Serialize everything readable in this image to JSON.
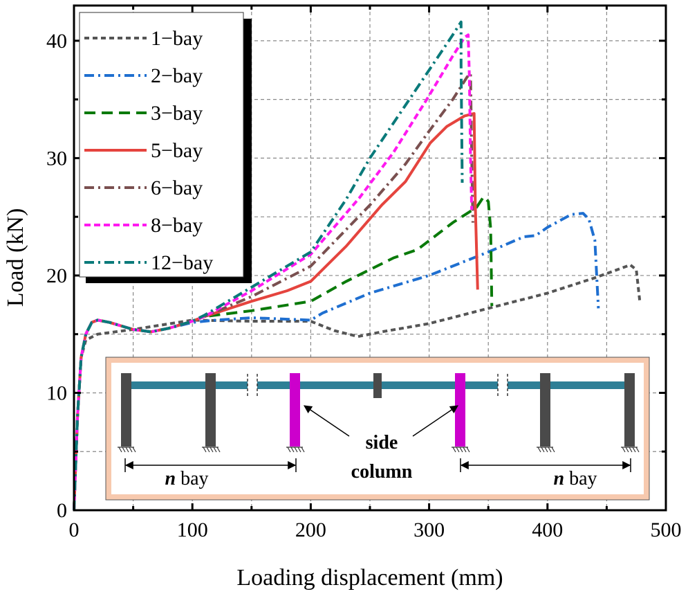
{
  "chart_data": {
    "type": "line",
    "xlabel": "Loading displacement (mm)",
    "ylabel": "Load (kN)",
    "xlim": [
      0,
      500
    ],
    "ylim": [
      0,
      43
    ],
    "xticks": [
      0,
      100,
      200,
      300,
      400,
      500
    ],
    "yticks": [
      0,
      10,
      20,
      30,
      40
    ],
    "grid": true,
    "legend_placement": "top-left",
    "series": [
      {
        "name": "1−bay",
        "color": "#555555",
        "dash": "7,5",
        "points": [
          [
            0,
            0
          ],
          [
            3,
            8
          ],
          [
            6,
            13
          ],
          [
            10,
            14.5
          ],
          [
            20,
            15
          ],
          [
            50,
            15.4
          ],
          [
            100,
            16.2
          ],
          [
            150,
            16.1
          ],
          [
            200,
            16.1
          ],
          [
            220,
            15.3
          ],
          [
            240,
            14.8
          ],
          [
            260,
            15.2
          ],
          [
            300,
            15.9
          ],
          [
            350,
            17.2
          ],
          [
            400,
            18.5
          ],
          [
            440,
            19.8
          ],
          [
            470,
            20.9
          ],
          [
            475,
            20.5
          ],
          [
            478,
            17.8
          ]
        ]
      },
      {
        "name": "2−bay",
        "color": "#1f6fd0",
        "dash": "14,6,3,6",
        "points": [
          [
            0,
            0
          ],
          [
            3,
            8
          ],
          [
            6,
            13
          ],
          [
            10,
            15
          ],
          [
            15,
            16
          ],
          [
            20,
            16.2
          ],
          [
            30,
            16
          ],
          [
            50,
            15.4
          ],
          [
            65,
            15.2
          ],
          [
            80,
            15.5
          ],
          [
            100,
            16
          ],
          [
            120,
            16.2
          ],
          [
            150,
            16.4
          ],
          [
            200,
            16.2
          ],
          [
            210,
            16.8
          ],
          [
            250,
            18.5
          ],
          [
            300,
            20
          ],
          [
            350,
            22
          ],
          [
            380,
            23.3
          ],
          [
            390,
            23.4
          ],
          [
            400,
            24.1
          ],
          [
            420,
            25.2
          ],
          [
            430,
            25.3
          ],
          [
            435,
            24.8
          ],
          [
            440,
            23
          ],
          [
            443,
            17.2
          ]
        ]
      },
      {
        "name": "3−bay",
        "color": "#0a7a0a",
        "dash": "16,9",
        "points": [
          [
            0,
            0
          ],
          [
            3,
            8
          ],
          [
            6,
            13
          ],
          [
            10,
            15
          ],
          [
            15,
            16
          ],
          [
            20,
            16.2
          ],
          [
            30,
            16
          ],
          [
            50,
            15.4
          ],
          [
            65,
            15.2
          ],
          [
            80,
            15.5
          ],
          [
            100,
            16.1
          ],
          [
            110,
            16.5
          ],
          [
            150,
            17
          ],
          [
            200,
            17.8
          ],
          [
            230,
            19.5
          ],
          [
            270,
            21.5
          ],
          [
            290,
            22.2
          ],
          [
            320,
            24.5
          ],
          [
            340,
            25.8
          ],
          [
            346,
            26.7
          ],
          [
            350,
            26.3
          ],
          [
            352,
            24
          ],
          [
            353,
            17.4
          ]
        ]
      },
      {
        "name": "5−bay",
        "color": "#e5443e",
        "dash": "",
        "points": [
          [
            0,
            0
          ],
          [
            3,
            8
          ],
          [
            6,
            13
          ],
          [
            10,
            15
          ],
          [
            15,
            16
          ],
          [
            20,
            16.2
          ],
          [
            30,
            16
          ],
          [
            50,
            15.4
          ],
          [
            65,
            15.2
          ],
          [
            80,
            15.5
          ],
          [
            100,
            16.1
          ],
          [
            110,
            16.5
          ],
          [
            150,
            17.8
          ],
          [
            180,
            18.7
          ],
          [
            200,
            19.5
          ],
          [
            230,
            22.5
          ],
          [
            260,
            26
          ],
          [
            280,
            28
          ],
          [
            301,
            31.3
          ],
          [
            315,
            32.7
          ],
          [
            330,
            33.6
          ],
          [
            338,
            33.8
          ],
          [
            339,
            26
          ],
          [
            341,
            18.8
          ]
        ]
      },
      {
        "name": "6−bay",
        "color": "#7a5050",
        "dash": "14,6,3,6",
        "points": [
          [
            0,
            0
          ],
          [
            3,
            8
          ],
          [
            6,
            13
          ],
          [
            10,
            15
          ],
          [
            15,
            16
          ],
          [
            20,
            16.2
          ],
          [
            30,
            16
          ],
          [
            50,
            15.4
          ],
          [
            65,
            15.2
          ],
          [
            80,
            15.5
          ],
          [
            100,
            16.1
          ],
          [
            110,
            16.5
          ],
          [
            150,
            18.2
          ],
          [
            200,
            20.8
          ],
          [
            250,
            26
          ],
          [
            280,
            29.5
          ],
          [
            300,
            32.3
          ],
          [
            320,
            35
          ],
          [
            332,
            36.9
          ],
          [
            335,
            37.2
          ],
          [
            336,
            30
          ],
          [
            337,
            24.5
          ]
        ]
      },
      {
        "name": "8−bay",
        "color": "#ff19f0",
        "dash": "9,5",
        "points": [
          [
            0,
            0
          ],
          [
            3,
            8
          ],
          [
            6,
            13
          ],
          [
            10,
            15
          ],
          [
            15,
            16
          ],
          [
            20,
            16.2
          ],
          [
            30,
            16
          ],
          [
            50,
            15.4
          ],
          [
            65,
            15.2
          ],
          [
            80,
            15.5
          ],
          [
            100,
            16.1
          ],
          [
            110,
            16.5
          ],
          [
            150,
            18.7
          ],
          [
            200,
            21.8
          ],
          [
            241,
            26.6
          ],
          [
            270,
            30.5
          ],
          [
            298,
            35
          ],
          [
            320,
            38.7
          ],
          [
            330,
            40.3
          ],
          [
            333,
            40.5
          ],
          [
            334,
            37
          ],
          [
            335,
            30
          ],
          [
            336,
            25.6
          ]
        ]
      },
      {
        "name": "12−bay",
        "color": "#0a7a7a",
        "dash": "14,6,3,6",
        "points": [
          [
            0,
            0
          ],
          [
            3,
            8
          ],
          [
            6,
            13
          ],
          [
            10,
            15
          ],
          [
            15,
            16
          ],
          [
            20,
            16.2
          ],
          [
            30,
            16
          ],
          [
            50,
            15.4
          ],
          [
            65,
            15.2
          ],
          [
            80,
            15.5
          ],
          [
            100,
            16.1
          ],
          [
            110,
            16.6
          ],
          [
            150,
            19
          ],
          [
            200,
            22
          ],
          [
            230,
            26.5
          ],
          [
            250,
            30
          ],
          [
            270,
            33
          ],
          [
            300,
            37.5
          ],
          [
            320,
            40.5
          ],
          [
            327,
            41.6
          ],
          [
            327,
            38
          ],
          [
            328,
            27.9
          ]
        ]
      }
    ],
    "inset": {
      "side_label_1": "side",
      "side_label_2": "column",
      "n_label": "n",
      "bay_label": "bay",
      "colors": {
        "beam": "#2e7f96",
        "column": "#4a4a4a",
        "side_column": "#cc00cc",
        "frame": "#f7c9ae"
      }
    }
  }
}
